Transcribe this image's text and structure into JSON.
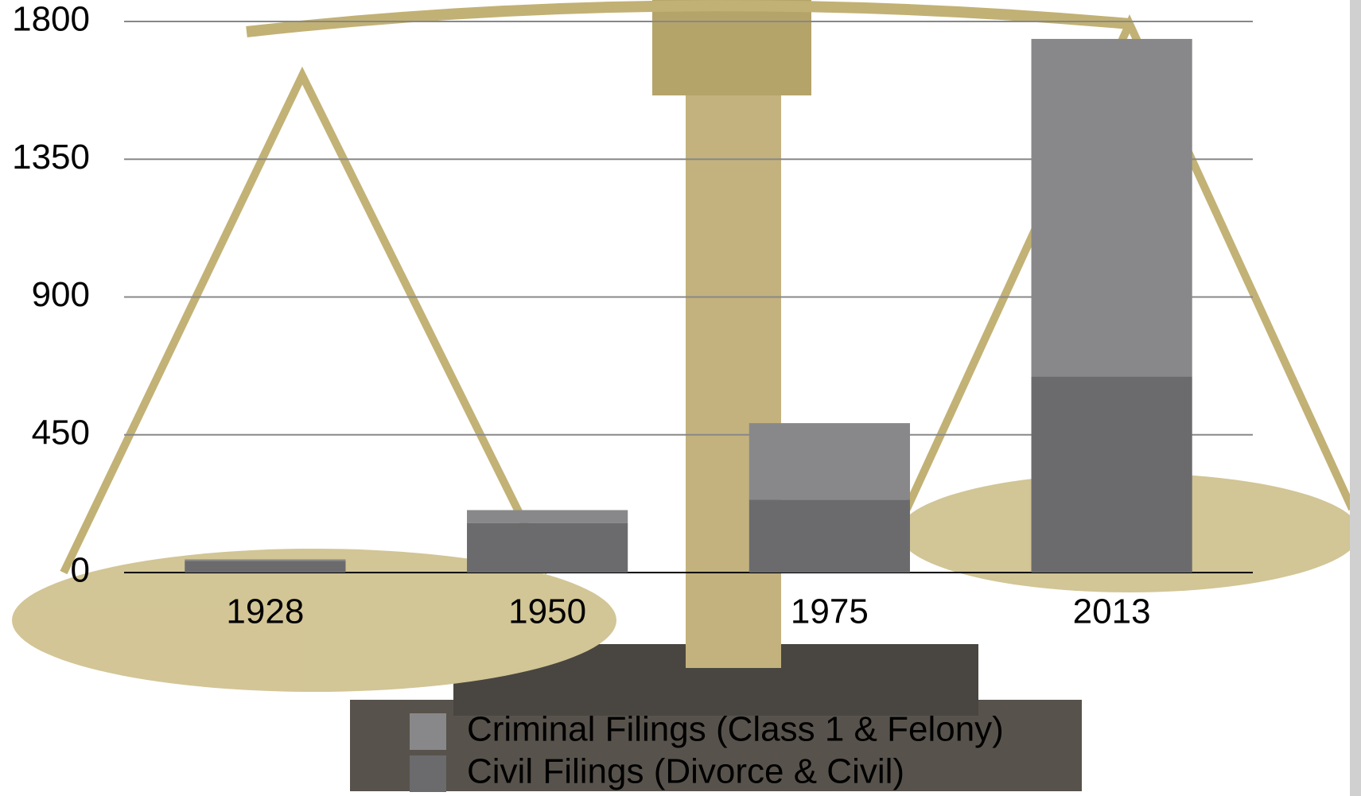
{
  "chart_data": {
    "type": "stacked_bar",
    "categories": [
      "1928",
      "1950",
      "1975",
      "2013"
    ],
    "series": [
      {
        "name": "Criminal Filings (Class 1 & Felony)",
        "color": "#88888a",
        "values": [
          5,
          42,
          250,
          1102
        ]
      },
      {
        "name": "Civil Filings (Divorce & Civil)",
        "color": "#6b6b6e",
        "values": [
          38,
          162,
          238,
          641
        ]
      }
    ],
    "ylim": [
      0,
      1800
    ],
    "yticks": [
      0,
      450,
      900,
      1350,
      1800
    ],
    "grid": true,
    "legend": "bottom"
  }
}
